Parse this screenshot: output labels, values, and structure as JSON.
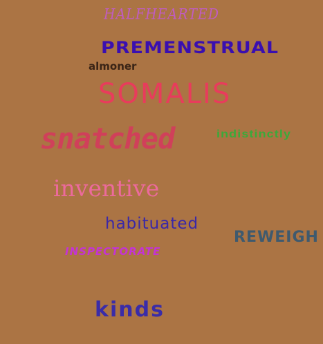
{
  "background_color": "#ab7444",
  "words": [
    {
      "text": "HALFHEARTED",
      "color": "#c05cc0"
    },
    {
      "text": "PREMENSTRUAL",
      "color": "#3a0fb0"
    },
    {
      "text": "almoner",
      "color": "#3a2416"
    },
    {
      "text": "SOMALIS",
      "color": "#e83c5c"
    },
    {
      "text": "snatched",
      "color": "#d0405a"
    },
    {
      "text": "indistinctly",
      "color": "#3aaa3a"
    },
    {
      "text": "inventive",
      "color": "#ec6a9c"
    },
    {
      "text": "habituated",
      "color": "#3a28a8"
    },
    {
      "text": "REWEIGH",
      "color": "#3f5a6e"
    },
    {
      "text": "INSPECTORATE",
      "color": "#c433d4"
    },
    {
      "text": "kinds",
      "color": "#3a2ca8"
    }
  ]
}
